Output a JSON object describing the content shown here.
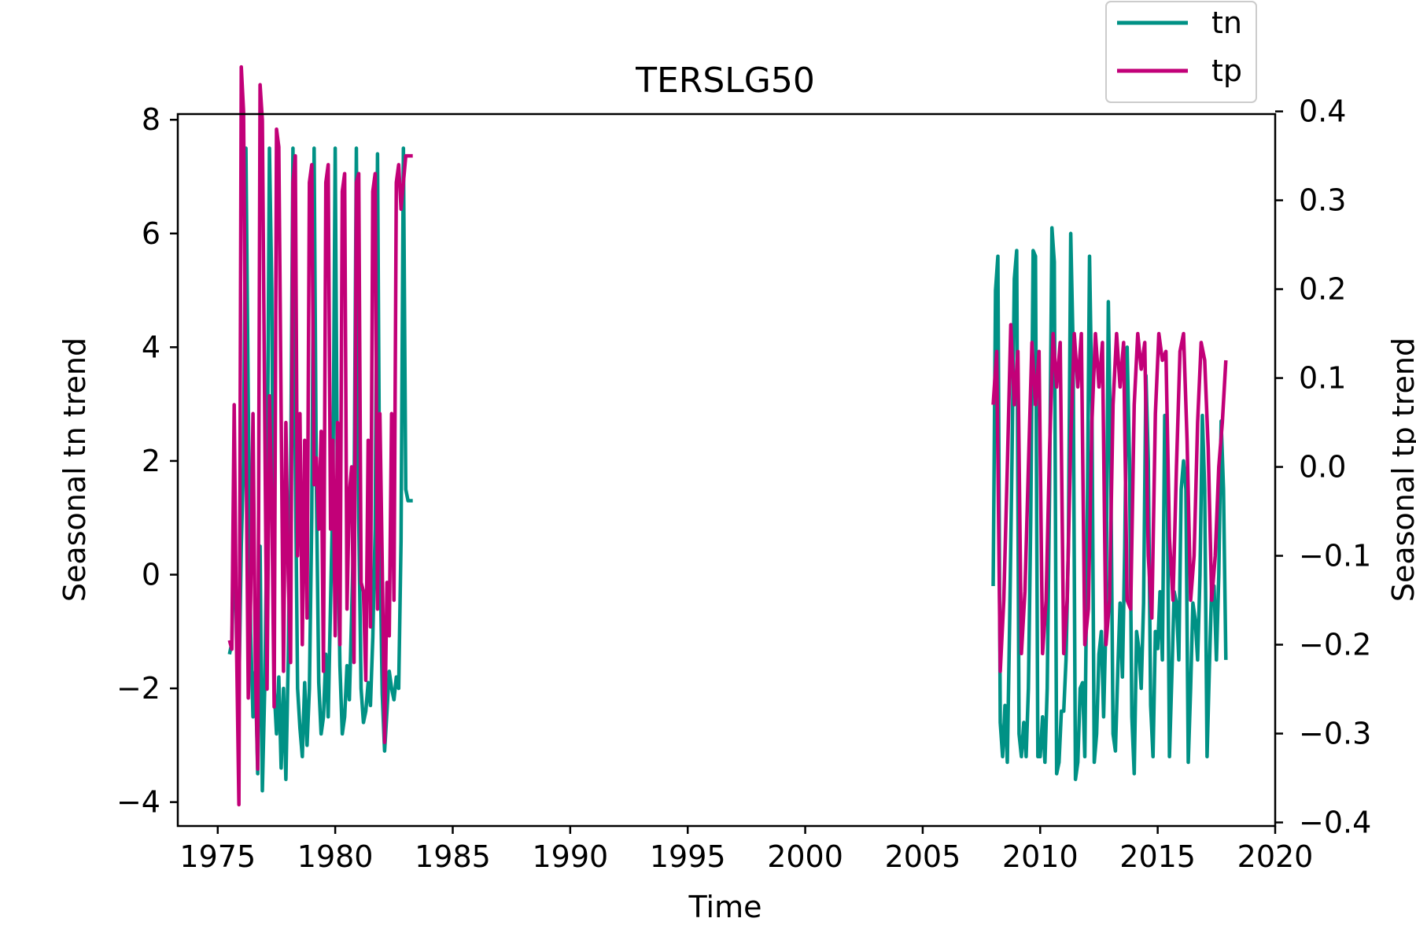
{
  "chart_data": {
    "type": "line",
    "title": "TERSLG50",
    "xlabel": "Time",
    "ylabel_left": "Seasonal tn trend",
    "ylabel_right": "Seasonal tp trend",
    "xlim": [
      1973.3,
      2020
    ],
    "ylim_left": [
      -4.42,
      8.1
    ],
    "ylim_right": [
      -0.404,
      0.397
    ],
    "xticks": [
      1975,
      1980,
      1985,
      1990,
      1995,
      2000,
      2005,
      2010,
      2015,
      2020
    ],
    "yticks_left": [
      -4,
      -2,
      0,
      2,
      4,
      6,
      8
    ],
    "yticks_right": [
      -0.4,
      -0.3,
      -0.2,
      -0.1,
      0.0,
      0.1,
      0.2,
      0.3,
      0.4
    ],
    "ytick_labels_left": [
      "−4",
      "−2",
      "0",
      "2",
      "4",
      "6",
      "8"
    ],
    "ytick_labels_right": [
      "−0.4",
      "−0.3",
      "−0.2",
      "−0.1",
      "0.0",
      "0.1",
      "0.2",
      "0.3",
      "0.4"
    ],
    "grid": false,
    "legend": {
      "placement": "above top-right",
      "entries": [
        "tn",
        "tp"
      ]
    },
    "series": [
      {
        "name": "tn",
        "axis": "left",
        "color": "#009185",
        "segments": [
          {
            "x": [
              1975.5,
              1975.6,
              1975.7,
              1975.8,
              1975.9,
              1976.0,
              1976.1,
              1976.2,
              1976.3,
              1976.4,
              1976.5,
              1976.6,
              1976.7,
              1976.8,
              1976.9,
              1977.0,
              1977.1,
              1977.2,
              1977.3,
              1977.4,
              1977.5,
              1977.6,
              1977.7,
              1977.8,
              1977.9,
              1978.0,
              1978.1,
              1978.2,
              1978.3,
              1978.4,
              1978.5,
              1978.6,
              1978.7,
              1978.8,
              1978.9,
              1979.0,
              1979.1,
              1979.2,
              1979.3,
              1979.4,
              1979.5,
              1979.6,
              1979.7,
              1979.8,
              1979.9,
              1980.0,
              1980.1,
              1980.2,
              1980.3,
              1980.4,
              1980.5,
              1980.6,
              1980.7,
              1980.8,
              1980.9,
              1981.0,
              1981.1,
              1981.2,
              1981.3,
              1981.4,
              1981.5,
              1981.6,
              1981.7,
              1981.8,
              1981.9,
              1982.0,
              1982.1,
              1982.2,
              1982.3,
              1982.4,
              1982.5,
              1982.6,
              1982.7,
              1982.8,
              1982.9,
              1983.0,
              1983.1,
              1983.2,
              1983.3
            ],
            "y": [
              -1.4,
              -1.2,
              0.5,
              -0.5,
              -2.0,
              0.5,
              2.0,
              7.5,
              3.0,
              -1.0,
              -2.5,
              -1.7,
              -3.5,
              0.5,
              -3.8,
              -2.0,
              1.0,
              7.5,
              5.0,
              -2.0,
              -2.8,
              -1.8,
              -3.4,
              -2.0,
              -3.6,
              -1.5,
              1.5,
              7.5,
              2.0,
              -2.0,
              -2.7,
              -3.2,
              -1.9,
              -3.0,
              -2.0,
              1.0,
              7.5,
              1.5,
              -1.9,
              -2.8,
              -2.5,
              -1.4,
              -2.5,
              -0.5,
              1.5,
              7.5,
              1.0,
              -1.6,
              -2.8,
              -2.5,
              -1.6,
              -2.2,
              -0.7,
              1.0,
              7.5,
              1.0,
              -2.0,
              -2.6,
              -2.4,
              -1.9,
              -2.3,
              -1.1,
              0.8,
              7.4,
              0.5,
              -2.1,
              -3.1,
              -2.4,
              -1.7,
              -2.0,
              -2.2,
              -1.8,
              -2.0,
              0.6,
              7.5,
              1.5,
              1.3,
              1.3,
              1.3
            ]
          },
          {
            "x": [
              2008.0,
              2008.1,
              2008.2,
              2008.3,
              2008.4,
              2008.5,
              2008.6,
              2008.7,
              2008.8,
              2008.9,
              2009.0,
              2009.1,
              2009.2,
              2009.3,
              2009.4,
              2009.5,
              2009.6,
              2009.7,
              2009.8,
              2009.9,
              2010.0,
              2010.1,
              2010.2,
              2010.3,
              2010.4,
              2010.5,
              2010.6,
              2010.7,
              2010.8,
              2010.9,
              2011.0,
              2011.1,
              2011.2,
              2011.3,
              2011.4,
              2011.5,
              2011.6,
              2011.7,
              2011.8,
              2011.9,
              2012.0,
              2012.1,
              2012.2,
              2012.3,
              2012.4,
              2012.5,
              2012.6,
              2012.7,
              2012.8,
              2012.9,
              2013.0,
              2013.1,
              2013.2,
              2013.3,
              2013.4,
              2013.5,
              2013.6,
              2013.7,
              2013.8,
              2013.9,
              2014.0,
              2014.1,
              2014.2,
              2014.3,
              2014.4,
              2014.5,
              2014.6,
              2014.7,
              2014.8,
              2014.9,
              2015.0,
              2015.1,
              2015.2,
              2015.3,
              2015.4,
              2015.5,
              2015.6,
              2015.7,
              2015.8,
              2015.9,
              2016.0,
              2016.1,
              2016.2,
              2016.3,
              2016.4,
              2016.5,
              2016.6,
              2016.7,
              2016.8,
              2016.9,
              2017.0,
              2017.1,
              2017.2,
              2017.3,
              2017.4,
              2017.5,
              2017.6,
              2017.7,
              2017.8,
              2017.9
            ],
            "y": [
              -0.2,
              5.0,
              5.6,
              -2.6,
              -3.2,
              -2.3,
              -3.3,
              -0.8,
              2.0,
              5.2,
              5.7,
              -2.8,
              -3.2,
              -2.6,
              -3.2,
              -2.0,
              1.0,
              5.7,
              5.6,
              -3.2,
              -3.2,
              -2.5,
              -3.3,
              -2.0,
              1.5,
              6.1,
              5.5,
              -3.5,
              -3.3,
              -2.4,
              -2.4,
              -1.5,
              0.5,
              6.0,
              4.0,
              -3.6,
              -3.3,
              -2.0,
              -1.9,
              -3.2,
              0.8,
              5.6,
              3.0,
              -3.3,
              -2.8,
              -1.4,
              -1.0,
              -2.5,
              -0.8,
              4.8,
              2.0,
              -2.8,
              -3.1,
              -1.7,
              -0.5,
              -1.8,
              0.5,
              4.0,
              2.0,
              -2.5,
              -3.5,
              -1.0,
              -1.3,
              -2.0,
              -0.5,
              3.5,
              2.0,
              -2.3,
              -3.2,
              -1.0,
              -1.3,
              -0.3,
              -1.5,
              2.8,
              2.0,
              -3.2,
              -1.8,
              -0.3,
              -0.5,
              -1.5,
              1.5,
              2.0,
              1.5,
              -3.3,
              -2.0,
              -0.5,
              -0.8,
              -1.5,
              0.0,
              2.8,
              1.5,
              -3.2,
              -1.6,
              -0.2,
              -0.2,
              -1.5,
              0.0,
              2.7,
              1.5,
              -1.5
            ]
          }
        ]
      },
      {
        "name": "tp",
        "axis": "right",
        "color": "#c20078",
        "segments": [
          {
            "x": [
              1975.5,
              1975.6,
              1975.7,
              1975.8,
              1975.9,
              1976.0,
              1976.1,
              1976.2,
              1976.3,
              1976.4,
              1976.5,
              1976.6,
              1976.7,
              1976.8,
              1976.9,
              1977.0,
              1977.1,
              1977.2,
              1977.3,
              1977.4,
              1977.5,
              1977.6,
              1977.7,
              1977.8,
              1977.9,
              1978.0,
              1978.1,
              1978.2,
              1978.3,
              1978.4,
              1978.5,
              1978.6,
              1978.7,
              1978.8,
              1978.9,
              1979.0,
              1979.1,
              1979.2,
              1979.3,
              1979.4,
              1979.5,
              1979.6,
              1979.7,
              1979.8,
              1979.9,
              1980.0,
              1980.1,
              1980.2,
              1980.3,
              1980.4,
              1980.5,
              1980.6,
              1980.7,
              1980.8,
              1980.9,
              1981.0,
              1981.1,
              1981.2,
              1981.3,
              1981.4,
              1981.5,
              1981.6,
              1981.7,
              1981.8,
              1981.9,
              1982.0,
              1982.1,
              1982.2,
              1982.3,
              1982.4,
              1982.5,
              1982.6,
              1982.7,
              1982.8,
              1982.9,
              1983.0,
              1983.1,
              1983.2,
              1983.3
            ],
            "y": [
              -0.195,
              -0.205,
              0.07,
              -0.2,
              -0.38,
              0.45,
              0.4,
              0.05,
              -0.26,
              -0.15,
              0.06,
              -0.22,
              -0.34,
              0.43,
              0.39,
              0.06,
              -0.25,
              0.08,
              -0.04,
              -0.27,
              0.38,
              0.36,
              0.06,
              -0.23,
              0.05,
              -0.12,
              -0.22,
              0.32,
              0.35,
              -0.1,
              0.06,
              -0.2,
              0.03,
              -0.17,
              0.32,
              0.34,
              -0.02,
              0.01,
              -0.07,
              0.04,
              -0.23,
              0.32,
              0.34,
              -0.07,
              0.03,
              -0.19,
              0.05,
              -0.2,
              0.31,
              0.33,
              -0.16,
              -0.03,
              0.0,
              -0.22,
              0.32,
              0.33,
              -0.13,
              -0.14,
              -0.24,
              0.03,
              -0.18,
              0.31,
              0.33,
              -0.16,
              0.06,
              -0.11,
              -0.31,
              -0.13,
              -0.19,
              0.06,
              -0.15,
              0.32,
              0.34,
              0.29,
              0.32,
              0.35,
              0.35,
              0.35,
              0.35
            ]
          },
          {
            "x": [
              2008.0,
              2008.15,
              2008.3,
              2008.45,
              2008.6,
              2008.75,
              2008.9,
              2009.05,
              2009.2,
              2009.35,
              2009.5,
              2009.65,
              2009.8,
              2009.95,
              2010.1,
              2010.25,
              2010.4,
              2010.55,
              2010.7,
              2010.85,
              2011.0,
              2011.15,
              2011.3,
              2011.45,
              2011.6,
              2011.75,
              2011.9,
              2012.05,
              2012.2,
              2012.35,
              2012.5,
              2012.65,
              2012.8,
              2012.95,
              2013.1,
              2013.25,
              2013.4,
              2013.55,
              2013.7,
              2013.85,
              2014.0,
              2014.15,
              2014.3,
              2014.45,
              2014.6,
              2014.75,
              2014.9,
              2015.05,
              2015.2,
              2015.35,
              2015.5,
              2015.65,
              2015.8,
              2015.95,
              2016.1,
              2016.25,
              2016.4,
              2016.55,
              2016.7,
              2016.85,
              2017.0,
              2017.15,
              2017.3,
              2017.45,
              2017.6,
              2017.75,
              2017.9
            ],
            "y": [
              0.07,
              0.13,
              -0.23,
              -0.15,
              0.0,
              0.16,
              0.07,
              0.13,
              -0.21,
              -0.14,
              0.0,
              0.14,
              0.07,
              0.13,
              -0.21,
              -0.15,
              0.02,
              0.15,
              0.09,
              0.14,
              -0.21,
              -0.15,
              0.03,
              0.15,
              0.09,
              0.15,
              -0.2,
              -0.16,
              0.05,
              0.15,
              0.09,
              0.14,
              -0.2,
              -0.15,
              0.07,
              0.15,
              0.09,
              0.14,
              -0.15,
              -0.16,
              0.07,
              0.15,
              0.11,
              0.14,
              -0.1,
              -0.17,
              0.06,
              0.15,
              0.12,
              0.13,
              -0.08,
              -0.15,
              0.0,
              0.13,
              0.15,
              0.03,
              -0.15,
              -0.1,
              0.05,
              0.14,
              0.12,
              0.02,
              -0.15,
              -0.1,
              0.0,
              0.05,
              0.12
            ]
          }
        ]
      }
    ]
  }
}
